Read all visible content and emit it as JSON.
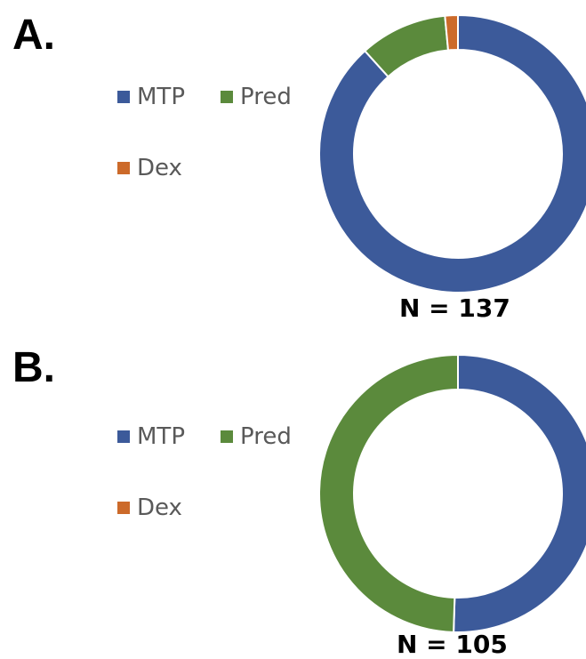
{
  "chart_data": [
    {
      "type": "pie",
      "panel": "A.",
      "n_label": "N = 137",
      "categories": [
        "MTP",
        "Pred",
        "Dex"
      ],
      "values": [
        88.3,
        10.2,
        1.5
      ],
      "colors": [
        "#3c5a9a",
        "#5b8a3c",
        "#cc6a2a"
      ],
      "legend": [
        "MTP",
        "Pred",
        "Dex"
      ],
      "legend_position": "left"
    },
    {
      "type": "pie",
      "panel": "B.",
      "n_label": "N = 105",
      "categories": [
        "MTP",
        "Pred",
        "Dex"
      ],
      "values": [
        50.5,
        49.5,
        0
      ],
      "colors": [
        "#3c5a9a",
        "#5b8a3c",
        "#cc6a2a"
      ],
      "legend": [
        "MTP",
        "Pred",
        "Dex"
      ],
      "legend_position": "left"
    }
  ]
}
